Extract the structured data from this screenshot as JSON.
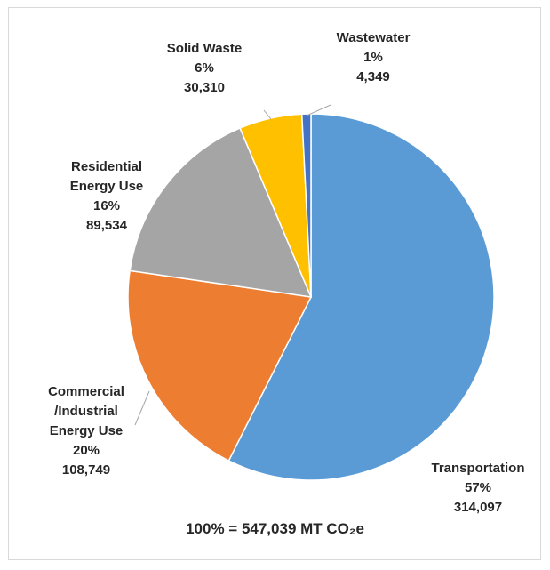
{
  "chart_data": {
    "type": "pie",
    "title": "",
    "slices": [
      {
        "name": "Transportation",
        "pct_label": "57%",
        "value_label": "314,097",
        "value": 314097,
        "color": "#5b9bd5"
      },
      {
        "name": "Commercial /Industrial Energy Use",
        "name_lines": [
          "Commercial",
          "/Industrial",
          "Energy Use"
        ],
        "pct_label": "20%",
        "value_label": "108,749",
        "value": 108749,
        "color": "#ed7d31"
      },
      {
        "name": "Residential Energy Use",
        "name_lines": [
          "Residential",
          "Energy Use"
        ],
        "pct_label": "16%",
        "value_label": "89,534",
        "value": 89534,
        "color": "#a5a5a5"
      },
      {
        "name": "Solid Waste",
        "pct_label": "6%",
        "value_label": "30,310",
        "value": 30310,
        "color": "#ffc000"
      },
      {
        "name": "Wastewater",
        "pct_label": "1%",
        "value_label": "4,349",
        "value": 4349,
        "color": "#4472c4"
      }
    ],
    "total_label": "100% =  547,039  MT CO₂e"
  }
}
